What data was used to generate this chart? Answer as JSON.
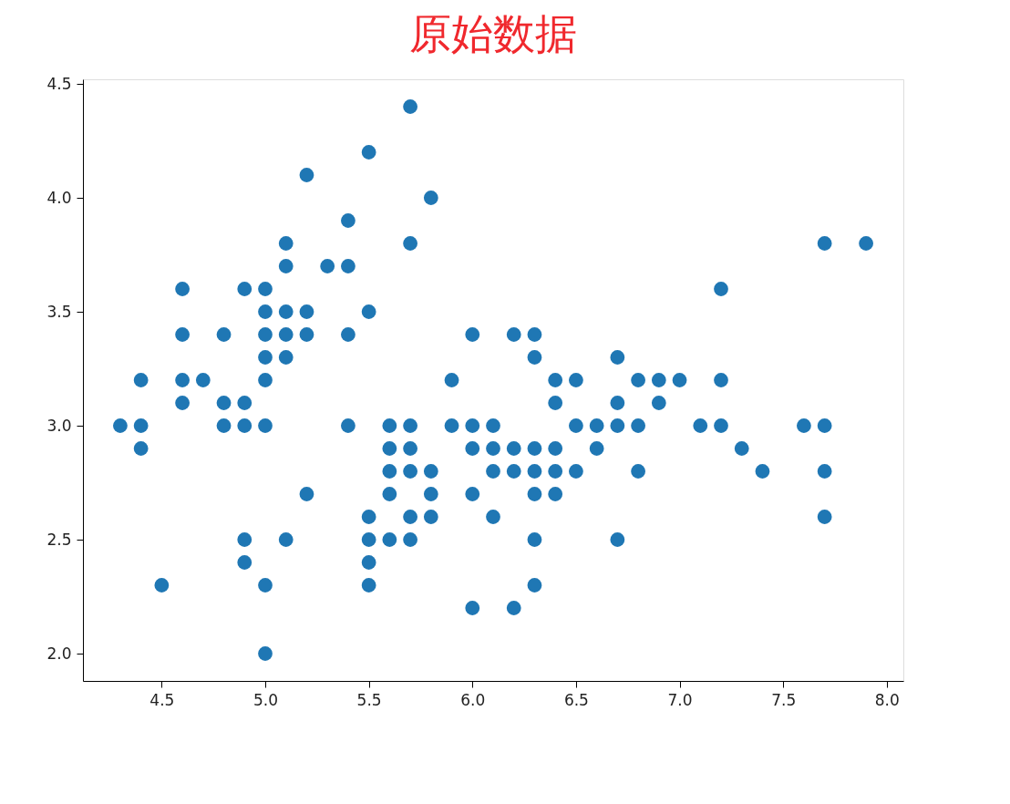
{
  "chart_data": {
    "type": "scatter",
    "title": "原始数据",
    "x": [
      4.3,
      4.4,
      4.4,
      4.4,
      4.5,
      4.6,
      4.6,
      4.6,
      4.6,
      4.7,
      4.8,
      4.8,
      4.8,
      4.9,
      4.9,
      4.9,
      4.9,
      4.9,
      5.0,
      5.0,
      5.0,
      5.0,
      5.0,
      5.0,
      5.0,
      5.0,
      5.1,
      5.1,
      5.1,
      5.1,
      5.1,
      5.1,
      5.2,
      5.2,
      5.2,
      5.2,
      5.3,
      5.4,
      5.4,
      5.4,
      5.4,
      5.5,
      5.5,
      5.5,
      5.5,
      5.5,
      5.5,
      5.6,
      5.6,
      5.6,
      5.6,
      5.6,
      5.7,
      5.7,
      5.7,
      5.7,
      5.7,
      5.7,
      5.7,
      5.8,
      5.8,
      5.8,
      5.8,
      5.9,
      5.9,
      6.0,
      6.0,
      6.0,
      6.0,
      6.0,
      6.1,
      6.1,
      6.1,
      6.1,
      6.2,
      6.2,
      6.2,
      6.2,
      6.3,
      6.3,
      6.3,
      6.3,
      6.3,
      6.3,
      6.3,
      6.4,
      6.4,
      6.4,
      6.4,
      6.4,
      6.5,
      6.5,
      6.5,
      6.6,
      6.6,
      6.7,
      6.7,
      6.7,
      6.7,
      6.8,
      6.8,
      6.8,
      6.9,
      6.9,
      7.0,
      7.1,
      7.2,
      7.2,
      7.2,
      7.3,
      7.4,
      7.6,
      7.7,
      7.7,
      7.7,
      7.7,
      7.9
    ],
    "series": [
      {
        "color": "#1f77b4",
        "values": [
          3.0,
          2.9,
          3.0,
          3.2,
          2.3,
          3.1,
          3.2,
          3.4,
          3.6,
          3.2,
          3.0,
          3.1,
          3.4,
          2.4,
          2.5,
          3.0,
          3.1,
          3.6,
          2.0,
          2.3,
          3.0,
          3.2,
          3.3,
          3.4,
          3.5,
          3.6,
          2.5,
          3.3,
          3.4,
          3.5,
          3.7,
          3.8,
          2.7,
          3.4,
          3.5,
          4.1,
          3.7,
          3.0,
          3.4,
          3.7,
          3.9,
          2.3,
          2.4,
          2.5,
          2.6,
          3.5,
          4.2,
          2.5,
          2.7,
          2.8,
          2.9,
          3.0,
          2.5,
          2.6,
          2.8,
          2.9,
          3.0,
          3.8,
          4.4,
          2.6,
          2.7,
          2.8,
          4.0,
          3.0,
          3.2,
          2.2,
          2.7,
          2.9,
          3.0,
          3.4,
          2.6,
          2.8,
          2.9,
          3.0,
          2.2,
          2.8,
          2.9,
          3.4,
          2.3,
          2.5,
          2.7,
          2.8,
          2.9,
          3.3,
          3.4,
          2.7,
          2.8,
          2.9,
          3.1,
          3.2,
          2.8,
          3.0,
          3.2,
          2.9,
          3.0,
          2.5,
          3.0,
          3.1,
          3.3,
          2.8,
          3.0,
          3.2,
          3.1,
          3.2,
          3.2,
          3.0,
          3.0,
          3.2,
          3.6,
          2.9,
          2.8,
          3.0,
          2.6,
          2.8,
          3.0,
          3.8,
          3.8
        ]
      }
    ],
    "xlim": [
      4.12,
      8.08
    ],
    "xticks": [
      {
        "value": 4.5,
        "label": "4.5"
      },
      {
        "value": 5,
        "label": "5.0"
      },
      {
        "value": 5.5,
        "label": "5.5"
      },
      {
        "value": 6,
        "label": "6.0"
      },
      {
        "value": 6.5,
        "label": "6.5"
      },
      {
        "value": 7,
        "label": "7.0"
      },
      {
        "value": 7.5,
        "label": "7.5"
      },
      {
        "value": 8,
        "label": "8.0"
      }
    ],
    "ylim": [
      1.88,
      4.52
    ],
    "yticks": [
      {
        "value": 2,
        "label": "2.0"
      },
      {
        "value": 2.5,
        "label": "2.5"
      },
      {
        "value": 3,
        "label": "3.0"
      },
      {
        "value": 3.5,
        "label": "3.5"
      },
      {
        "value": 4,
        "label": "4.0"
      },
      {
        "value": 4.5,
        "label": "4.5"
      }
    ],
    "marker": "circle",
    "grid": false
  }
}
